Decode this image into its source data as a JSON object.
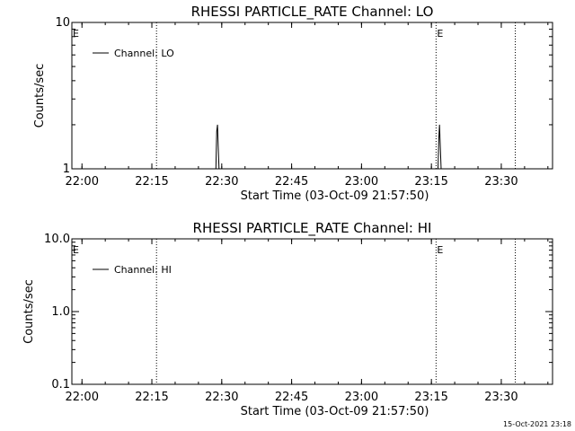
{
  "timestamp": "15-Oct-2021 23:18",
  "chart_data": [
    {
      "type": "line",
      "title": "RHESSI PARTICLE_RATE Channel: LO",
      "xlabel": "Start Time (03-Oct-09 21:57:50)",
      "ylabel": "Counts/sec",
      "yscale": "log",
      "ylim": [
        1,
        10
      ],
      "y_tick_labels": [
        "1",
        "10"
      ],
      "x_tick_labels": [
        "22:00",
        "22:15",
        "22:30",
        "22:45",
        "23:00",
        "23:15",
        "23:30"
      ],
      "xlim": [
        "21:57:50",
        "23:41:00"
      ],
      "legend": {
        "placement": "top-left",
        "entries": [
          "Channel: LO"
        ]
      },
      "vlines": [
        {
          "time": "21:57:50",
          "label": "E"
        },
        {
          "time": "22:16:00",
          "label": ""
        },
        {
          "time": "23:16:00",
          "label": "E"
        },
        {
          "time": "23:33:00",
          "label": ""
        }
      ],
      "series": [
        {
          "name": "Channel: LO",
          "points": [
            [
              "22:28:45",
              1
            ],
            [
              "22:28:55",
              1.8
            ],
            [
              "22:29:05",
              2.0
            ],
            [
              "22:29:15",
              1.4
            ],
            [
              "22:29:25",
              1
            ],
            [
              "23:16:25",
              1
            ],
            [
              "23:16:35",
              1.6
            ],
            [
              "23:16:45",
              2.0
            ],
            [
              "23:16:55",
              1.4
            ],
            [
              "23:17:05",
              1
            ]
          ]
        }
      ]
    },
    {
      "type": "line",
      "title": "RHESSI PARTICLE_RATE Channel: HI",
      "xlabel": "Start Time (03-Oct-09 21:57:50)",
      "ylabel": "Counts/sec",
      "yscale": "log",
      "ylim": [
        0.1,
        10
      ],
      "y_tick_labels": [
        "0.1",
        "1.0",
        "10.0"
      ],
      "x_tick_labels": [
        "22:00",
        "22:15",
        "22:30",
        "22:45",
        "23:00",
        "23:15",
        "23:30"
      ],
      "xlim": [
        "21:57:50",
        "23:41:00"
      ],
      "legend": {
        "placement": "top-left",
        "entries": [
          "Channel: HI"
        ]
      },
      "vlines": [
        {
          "time": "21:57:50",
          "label": "E"
        },
        {
          "time": "22:16:00",
          "label": ""
        },
        {
          "time": "23:16:00",
          "label": "E"
        },
        {
          "time": "23:33:00",
          "label": ""
        }
      ],
      "series": [
        {
          "name": "Channel: HI",
          "points": []
        }
      ]
    }
  ]
}
